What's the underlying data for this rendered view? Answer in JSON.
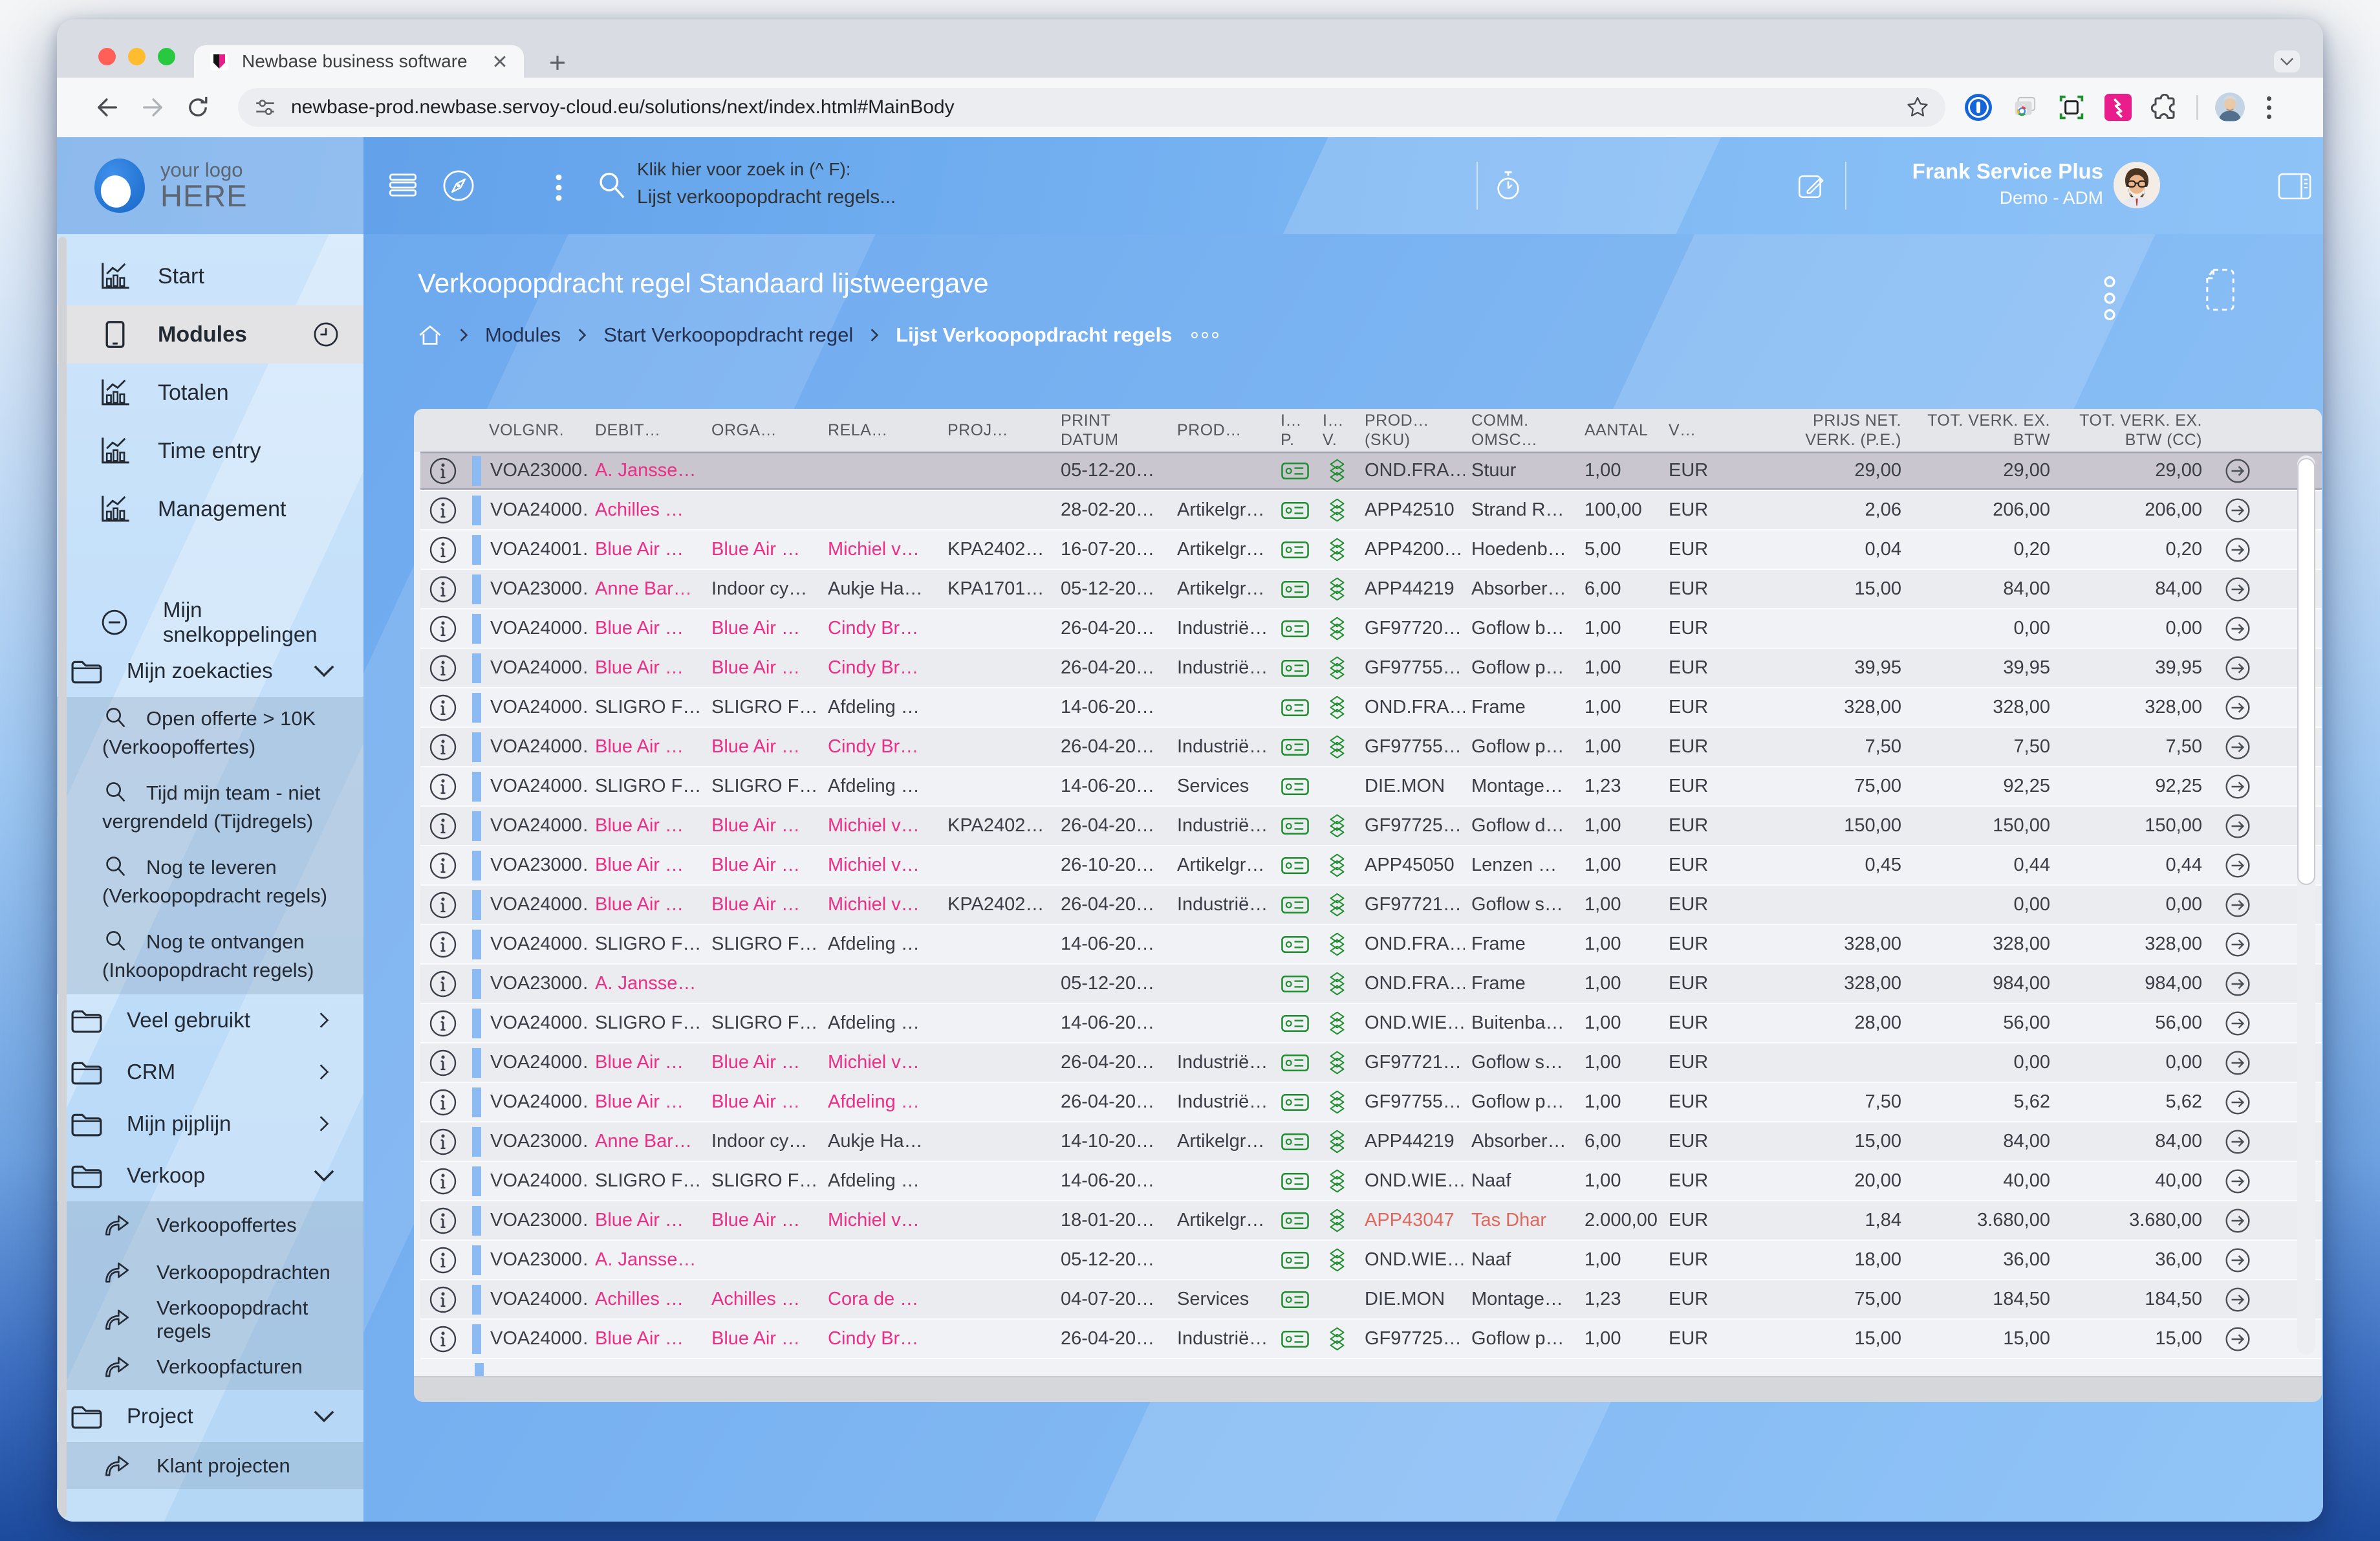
{
  "browser": {
    "tab_title": "Newbase business software",
    "url": "newbase-prod.newbase.servoy-cloud.eu/solutions/next/index.html#MainBody"
  },
  "app_header": {
    "logo_line1": "your logo",
    "logo_line2": "HERE",
    "search_hint_line1": "Klik hier voor zoek in (^ F):",
    "search_hint_line2": "Lijst verkoopopdracht regels...",
    "user_name": "Frank Service Plus",
    "user_role": "Demo - ADM"
  },
  "sidebar": {
    "top_items": [
      {
        "icon": "chart",
        "label": "Start"
      },
      {
        "icon": "tablet",
        "label": "Modules",
        "selected": true,
        "trailing": "clock"
      },
      {
        "icon": "chart",
        "label": "Totalen"
      },
      {
        "icon": "chart",
        "label": "Time entry"
      },
      {
        "icon": "chart",
        "label": "Management"
      }
    ],
    "shortcuts_label": "Mijn snelkoppelingen",
    "groups": [
      {
        "label": "Mijn zoekacties",
        "chevron": "down",
        "expanded": true,
        "child_style": "two-line",
        "children": [
          {
            "icon": "search",
            "label": "Open offerte > 10K (Verkoopoffertes)"
          },
          {
            "icon": "search",
            "label": "Tijd mijn team - niet vergrendeld (Tijdregels)"
          },
          {
            "icon": "search",
            "label": "Nog te leveren (Verkoopopdracht regels)"
          },
          {
            "icon": "search",
            "label": "Nog te ontvangen (Inkoopopdracht regels)"
          }
        ]
      },
      {
        "label": "Veel gebruikt",
        "chevron": "right",
        "children": []
      },
      {
        "label": "CRM",
        "chevron": "right",
        "children": []
      },
      {
        "label": "Mijn pijplijn",
        "chevron": "right",
        "children": []
      },
      {
        "label": "Verkoop",
        "chevron": "down",
        "expanded": true,
        "child_style": "one-line",
        "children": [
          {
            "icon": "share",
            "label": "Verkoopoffertes"
          },
          {
            "icon": "share",
            "label": "Verkoopopdrachten"
          },
          {
            "icon": "share",
            "label": "Verkoopopdracht regels"
          },
          {
            "icon": "share",
            "label": "Verkoopfacturen"
          }
        ]
      },
      {
        "label": "Project",
        "chevron": "down",
        "expanded": true,
        "child_style": "one-line",
        "children": [
          {
            "icon": "share",
            "label": "Klant projecten"
          }
        ]
      }
    ]
  },
  "content": {
    "title": "Verkoopopdracht regel Standaard lijstweergave",
    "breadcrumbs": [
      "Modules",
      "Start Verkoopopdracht regel",
      "Lijst Verkoopopdracht regels"
    ]
  },
  "table": {
    "columns": [
      {
        "id": "info",
        "l1": "",
        "l2": ""
      },
      {
        "id": "volgnr",
        "l1": "VOLGNR.",
        "l2": ""
      },
      {
        "id": "debit",
        "l1": "DEBIT…",
        "l2": ""
      },
      {
        "id": "orga",
        "l1": "ORGA…",
        "l2": ""
      },
      {
        "id": "rela",
        "l1": "RELA…",
        "l2": ""
      },
      {
        "id": "proj",
        "l1": "PROJ…",
        "l2": ""
      },
      {
        "id": "date",
        "l1": "PRINT",
        "l2": "DATUM"
      },
      {
        "id": "grp",
        "l1": "PROD…",
        "l2": ""
      },
      {
        "id": "ip",
        "l1": "I…",
        "l2": "P."
      },
      {
        "id": "iv",
        "l1": "I…",
        "l2": "V."
      },
      {
        "id": "sku",
        "l1": "PROD…",
        "l2": "(SKU)"
      },
      {
        "id": "comm",
        "l1": "COMM.",
        "l2": "OMSC…"
      },
      {
        "id": "qty",
        "l1": "AANTAL",
        "l2": ""
      },
      {
        "id": "cur",
        "l1": "V…",
        "l2": ""
      },
      {
        "id": "price",
        "l1": "PRIJS NET.",
        "l2": "VERK. (P.E.)",
        "align": "right"
      },
      {
        "id": "total",
        "l1": "TOT. VERK. EX.",
        "l2": "BTW",
        "align": "right"
      },
      {
        "id": "totalcc",
        "l1": "TOT. VERK. EX.",
        "l2": "BTW (CC)",
        "align": "right"
      },
      {
        "id": "arrow",
        "l1": "",
        "l2": ""
      }
    ],
    "rows": [
      {
        "selected": true,
        "volgnr": "VOA23000…",
        "debit": "A. Jansse…",
        "debit_link": true,
        "orga": "",
        "rela": "",
        "proj": "",
        "print_date": "05-12-20…",
        "prod_group": "",
        "has_ip": true,
        "has_iv": true,
        "sku": "OND.FRA…",
        "comm": "Stuur",
        "qty": "1,00",
        "currency": "EUR",
        "price": "29,00",
        "total": "29,00",
        "total_cc": "29,00"
      },
      {
        "volgnr": "VOA24000…",
        "debit": "Achilles …",
        "debit_link": true,
        "orga": "",
        "rela": "",
        "proj": "",
        "print_date": "28-02-20…",
        "prod_group": "Artikelgr…",
        "has_ip": true,
        "has_iv": true,
        "sku": "APP42510",
        "comm": "Strand R…",
        "qty": "100,00",
        "currency": "EUR",
        "price": "2,06",
        "total": "206,00",
        "total_cc": "206,00"
      },
      {
        "volgnr": "VOA24001…",
        "debit": "Blue Air …",
        "debit_link": true,
        "orga": "Blue Air …",
        "orga_link": true,
        "rela": "Michiel v…",
        "rela_link": true,
        "proj": "KPA2402…",
        "print_date": "16-07-20…",
        "prod_group": "Artikelgr…",
        "has_ip": true,
        "has_iv": true,
        "sku": "APP4200…",
        "comm": "Hoedenb…",
        "qty": "5,00",
        "currency": "EUR",
        "price": "0,04",
        "total": "0,20",
        "total_cc": "0,20"
      },
      {
        "volgnr": "VOA23000…",
        "debit": "Anne Bar…",
        "debit_link": true,
        "orga": "Indoor cy…",
        "rela": "Aukje Ha…",
        "proj": "KPA1701…",
        "print_date": "05-12-20…",
        "prod_group": "Artikelgr…",
        "has_ip": true,
        "has_iv": true,
        "sku": "APP44219",
        "comm": "Absorber…",
        "qty": "6,00",
        "currency": "EUR",
        "price": "15,00",
        "total": "84,00",
        "total_cc": "84,00"
      },
      {
        "volgnr": "VOA24000…",
        "debit": "Blue Air …",
        "debit_link": true,
        "orga": "Blue Air …",
        "orga_link": true,
        "rela": "Cindy Br…",
        "rela_link": true,
        "proj": "",
        "print_date": "26-04-20…",
        "prod_group": "Industrië…",
        "has_ip": true,
        "has_iv": true,
        "sku": "GF97720…",
        "comm": "Goflow b…",
        "qty": "1,00",
        "currency": "EUR",
        "price": "",
        "total": "0,00",
        "total_cc": "0,00"
      },
      {
        "volgnr": "VOA24000…",
        "debit": "Blue Air …",
        "debit_link": true,
        "orga": "Blue Air …",
        "orga_link": true,
        "rela": "Cindy Br…",
        "rela_link": true,
        "proj": "",
        "print_date": "26-04-20…",
        "prod_group": "Industrië…",
        "has_ip": true,
        "has_iv": true,
        "sku": "GF97755…",
        "comm": "Goflow p…",
        "qty": "1,00",
        "currency": "EUR",
        "price": "39,95",
        "total": "39,95",
        "total_cc": "39,95"
      },
      {
        "volgnr": "VOA24000…",
        "debit": "SLIGRO F…",
        "orga": "SLIGRO F…",
        "rela": "Afdeling …",
        "proj": "",
        "print_date": "14-06-20…",
        "prod_group": "",
        "has_ip": true,
        "has_iv": true,
        "sku": "OND.FRA…",
        "comm": "Frame",
        "qty": "1,00",
        "currency": "EUR",
        "price": "328,00",
        "total": "328,00",
        "total_cc": "328,00"
      },
      {
        "volgnr": "VOA24000…",
        "debit": "Blue Air …",
        "debit_link": true,
        "orga": "Blue Air …",
        "orga_link": true,
        "rela": "Cindy Br…",
        "rela_link": true,
        "proj": "",
        "print_date": "26-04-20…",
        "prod_group": "Industrië…",
        "has_ip": true,
        "has_iv": true,
        "sku": "GF97755…",
        "comm": "Goflow p…",
        "qty": "1,00",
        "currency": "EUR",
        "price": "7,50",
        "total": "7,50",
        "total_cc": "7,50"
      },
      {
        "volgnr": "VOA24000…",
        "debit": "SLIGRO F…",
        "orga": "SLIGRO F…",
        "rela": "Afdeling …",
        "proj": "",
        "print_date": "14-06-20…",
        "prod_group": "Services",
        "has_ip": true,
        "has_iv": false,
        "sku": "DIE.MON",
        "comm": "Montage…",
        "qty": "1,23",
        "currency": "EUR",
        "price": "75,00",
        "total": "92,25",
        "total_cc": "92,25"
      },
      {
        "volgnr": "VOA24000…",
        "debit": "Blue Air …",
        "debit_link": true,
        "orga": "Blue Air …",
        "orga_link": true,
        "rela": "Michiel v…",
        "rela_link": true,
        "proj": "KPA2402…",
        "print_date": "26-04-20…",
        "prod_group": "Industrië…",
        "has_ip": true,
        "has_iv": true,
        "sku": "GF97725…",
        "comm": "Goflow d…",
        "qty": "1,00",
        "currency": "EUR",
        "price": "150,00",
        "total": "150,00",
        "total_cc": "150,00"
      },
      {
        "volgnr": "VOA23000…",
        "debit": "Blue Air …",
        "debit_link": true,
        "orga": "Blue Air …",
        "orga_link": true,
        "rela": "Michiel v…",
        "rela_link": true,
        "proj": "",
        "print_date": "26-10-20…",
        "prod_group": "Artikelgr…",
        "has_ip": true,
        "has_iv": true,
        "sku": "APP45050",
        "comm": "Lenzen …",
        "qty": "1,00",
        "currency": "EUR",
        "price": "0,45",
        "total": "0,44",
        "total_cc": "0,44"
      },
      {
        "volgnr": "VOA24000…",
        "debit": "Blue Air …",
        "debit_link": true,
        "orga": "Blue Air …",
        "orga_link": true,
        "rela": "Michiel v…",
        "rela_link": true,
        "proj": "KPA2402…",
        "print_date": "26-04-20…",
        "prod_group": "Industrië…",
        "has_ip": true,
        "has_iv": true,
        "sku": "GF97721…",
        "comm": "Goflow s…",
        "qty": "1,00",
        "currency": "EUR",
        "price": "",
        "total": "0,00",
        "total_cc": "0,00"
      },
      {
        "volgnr": "VOA24000…",
        "debit": "SLIGRO F…",
        "orga": "SLIGRO F…",
        "rela": "Afdeling …",
        "proj": "",
        "print_date": "14-06-20…",
        "prod_group": "",
        "has_ip": true,
        "has_iv": true,
        "sku": "OND.FRA…",
        "comm": "Frame",
        "qty": "1,00",
        "currency": "EUR",
        "price": "328,00",
        "total": "328,00",
        "total_cc": "328,00"
      },
      {
        "volgnr": "VOA23000…",
        "debit": "A. Jansse…",
        "debit_link": true,
        "orga": "",
        "rela": "",
        "proj": "",
        "print_date": "05-12-20…",
        "prod_group": "",
        "has_ip": true,
        "has_iv": true,
        "sku": "OND.FRA…",
        "comm": "Frame",
        "qty": "1,00",
        "currency": "EUR",
        "price": "328,00",
        "total": "984,00",
        "total_cc": "984,00"
      },
      {
        "volgnr": "VOA24000…",
        "debit": "SLIGRO F…",
        "orga": "SLIGRO F…",
        "rela": "Afdeling …",
        "proj": "",
        "print_date": "14-06-20…",
        "prod_group": "",
        "has_ip": true,
        "has_iv": true,
        "sku": "OND.WIE…",
        "comm": "Buitenba…",
        "qty": "1,00",
        "currency": "EUR",
        "price": "28,00",
        "total": "56,00",
        "total_cc": "56,00"
      },
      {
        "volgnr": "VOA24000…",
        "debit": "Blue Air …",
        "debit_link": true,
        "orga": "Blue Air …",
        "orga_link": true,
        "rela": "Michiel v…",
        "rela_link": true,
        "proj": "",
        "print_date": "26-04-20…",
        "prod_group": "Industrië…",
        "has_ip": true,
        "has_iv": true,
        "sku": "GF97721…",
        "comm": "Goflow s…",
        "qty": "1,00",
        "currency": "EUR",
        "price": "",
        "total": "0,00",
        "total_cc": "0,00"
      },
      {
        "volgnr": "VOA24000…",
        "debit": "Blue Air …",
        "debit_link": true,
        "orga": "Blue Air …",
        "orga_link": true,
        "rela": "Afdeling …",
        "rela_link": true,
        "proj": "",
        "print_date": "26-04-20…",
        "prod_group": "Industrië…",
        "has_ip": true,
        "has_iv": true,
        "sku": "GF97755…",
        "comm": "Goflow p…",
        "qty": "1,00",
        "currency": "EUR",
        "price": "7,50",
        "total": "5,62",
        "total_cc": "5,62"
      },
      {
        "volgnr": "VOA23000…",
        "debit": "Anne Bar…",
        "debit_link": true,
        "orga": "Indoor cy…",
        "rela": "Aukje Ha…",
        "proj": "",
        "print_date": "14-10-20…",
        "prod_group": "Artikelgr…",
        "has_ip": true,
        "has_iv": true,
        "sku": "APP44219",
        "comm": "Absorber…",
        "qty": "6,00",
        "currency": "EUR",
        "price": "15,00",
        "total": "84,00",
        "total_cc": "84,00"
      },
      {
        "volgnr": "VOA24000…",
        "debit": "SLIGRO F…",
        "orga": "SLIGRO F…",
        "rela": "Afdeling …",
        "proj": "",
        "print_date": "14-06-20…",
        "prod_group": "",
        "has_ip": true,
        "has_iv": true,
        "sku": "OND.WIE…",
        "comm": "Naaf",
        "qty": "1,00",
        "currency": "EUR",
        "price": "20,00",
        "total": "40,00",
        "total_cc": "40,00"
      },
      {
        "volgnr": "VOA23000…",
        "debit": "Blue Air …",
        "debit_link": true,
        "orga": "Blue Air …",
        "orga_link": true,
        "rela": "Michiel v…",
        "rela_link": true,
        "proj": "",
        "print_date": "18-01-20…",
        "prod_group": "Artikelgr…",
        "has_ip": true,
        "has_iv": true,
        "sku": "APP43047",
        "sku_alert": true,
        "comm": "Tas Dhar",
        "comm_alert": true,
        "qty": "2.000,00",
        "currency": "EUR",
        "price": "1,84",
        "total": "3.680,00",
        "total_cc": "3.680,00"
      },
      {
        "volgnr": "VOA23000…",
        "debit": "A. Jansse…",
        "debit_link": true,
        "orga": "",
        "rela": "",
        "proj": "",
        "print_date": "05-12-20…",
        "prod_group": "",
        "has_ip": true,
        "has_iv": true,
        "sku": "OND.WIE…",
        "comm": "Naaf",
        "qty": "1,00",
        "currency": "EUR",
        "price": "18,00",
        "total": "36,00",
        "total_cc": "36,00"
      },
      {
        "volgnr": "VOA24000…",
        "debit": "Achilles …",
        "debit_link": true,
        "orga": "Achilles …",
        "orga_link": true,
        "rela": "Cora de …",
        "rela_link": true,
        "proj": "",
        "print_date": "04-07-20…",
        "prod_group": "Services",
        "has_ip": true,
        "has_iv": false,
        "sku": "DIE.MON",
        "comm": "Montage…",
        "qty": "1,23",
        "currency": "EUR",
        "price": "75,00",
        "total": "184,50",
        "total_cc": "184,50"
      },
      {
        "volgnr": "VOA24000…",
        "debit": "Blue Air …",
        "debit_link": true,
        "orga": "Blue Air …",
        "orga_link": true,
        "rela": "Cindy Br…",
        "rela_link": true,
        "proj": "",
        "print_date": "26-04-20…",
        "prod_group": "Industrië…",
        "has_ip": true,
        "has_iv": true,
        "sku": "GF97725…",
        "comm": "Goflow p…",
        "qty": "1,00",
        "currency": "EUR",
        "price": "15,00",
        "total": "15,00",
        "total_cc": "15,00"
      }
    ]
  },
  "colors": {
    "accent_pink": "#ED2E86",
    "alert_red": "#E0685E",
    "icon_green": "#1E8E2E",
    "row_bar_blue": "#8CBAF2"
  }
}
